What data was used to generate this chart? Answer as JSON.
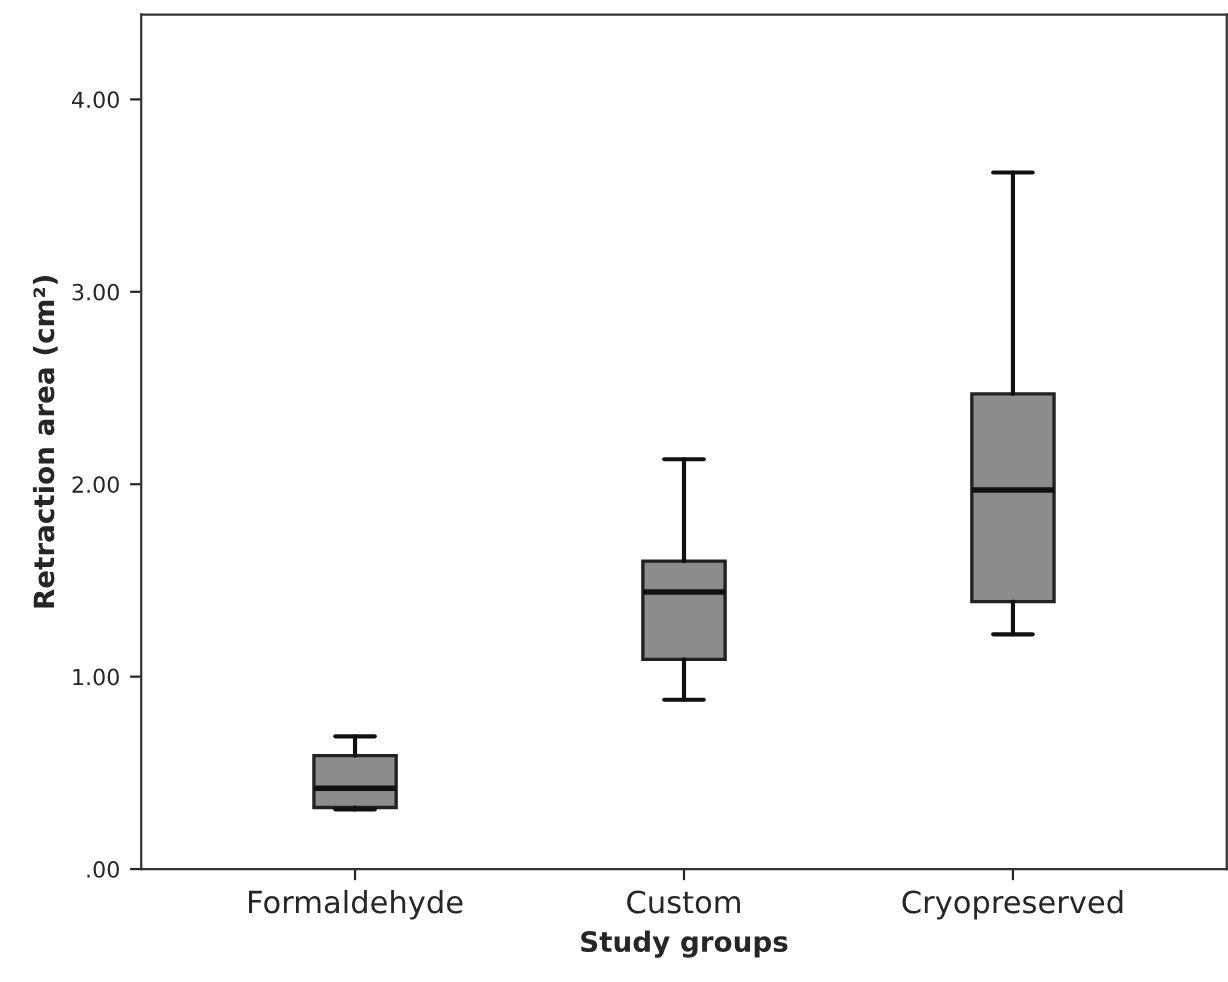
{
  "chart_data": {
    "type": "box",
    "categories": [
      "Formaldehyde",
      "Custom",
      "Cryopreserved"
    ],
    "boxes": [
      {
        "low": 0.31,
        "q1": 0.32,
        "median": 0.42,
        "q3": 0.59,
        "high": 0.69
      },
      {
        "low": 0.88,
        "q1": 1.09,
        "median": 1.44,
        "q3": 1.6,
        "high": 2.13
      },
      {
        "low": 1.22,
        "q1": 1.39,
        "median": 1.97,
        "q3": 2.47,
        "high": 3.62
      }
    ],
    "color": "#8c8c8c",
    "xlabel": "Study groups",
    "ylabel": "Retraction area (cm²)",
    "ylim": [
      0,
      4.44
    ],
    "yticks": [
      {
        "value": 0,
        "label": ".00"
      },
      {
        "value": 1,
        "label": "1.00"
      },
      {
        "value": 2,
        "label": "2.00"
      },
      {
        "value": 3,
        "label": "3.00"
      },
      {
        "value": 4,
        "label": "4.00"
      }
    ],
    "grid": false
  }
}
